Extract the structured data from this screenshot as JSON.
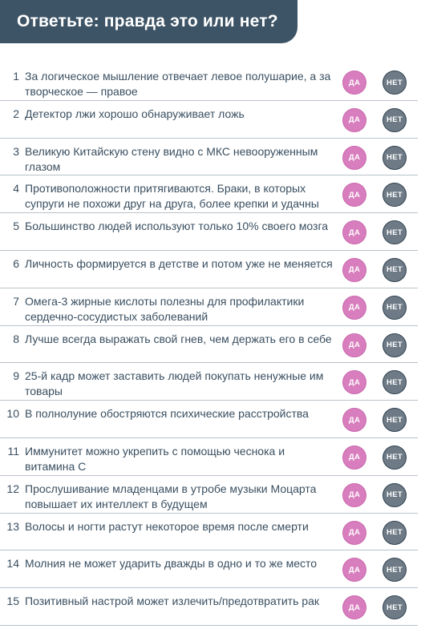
{
  "title": "Ответьте: правда это или нет?",
  "yes_label": "ДА",
  "no_label": "НЕТ",
  "colors": {
    "banner": "#3d5466",
    "yes_button": "#d87dbd",
    "no_button": "#6e7b86",
    "text": "#3a4f60"
  },
  "items": [
    {
      "num": "1",
      "text": "За логическое мышление отвечает левое полушарие, а за творческое — правое"
    },
    {
      "num": "2",
      "text": "Детектор лжи хорошо обнаруживает ложь"
    },
    {
      "num": "3",
      "text": "Великую Китайскую стену видно с МКС невооруженным глазом"
    },
    {
      "num": "4",
      "text": "Противоположности притягиваются. Браки, в которых супруги не похожи друг на друга, более крепки и удачны"
    },
    {
      "num": "5",
      "text": "Большинство людей используют только 10% своего мозга"
    },
    {
      "num": "6",
      "text": "Личность формируется в детстве и потом уже не меняется"
    },
    {
      "num": "7",
      "text": "Омега-3 жирные кислоты полезны для профилактики сердечно-сосудистых заболеваний"
    },
    {
      "num": "8",
      "text": "Лучше всегда выражать свой гнев, чем держать его в себе"
    },
    {
      "num": "9",
      "text": "25-й кадр может заставить людей покупать ненужные им товары"
    },
    {
      "num": "10",
      "text": "В полнолуние обостряются психические расстройства"
    },
    {
      "num": "11",
      "text": "Иммунитет можно укрепить с помощью чеснока и витамина С"
    },
    {
      "num": "12",
      "text": "Прослушивание младенцами в утробе музыки Моцарта повышает их интеллект в будущем"
    },
    {
      "num": "13",
      "text": "Волосы и ногти растут некоторое время после смерти"
    },
    {
      "num": "14",
      "text": "Молния не может ударить дважды в одно и то же место"
    },
    {
      "num": "15",
      "text": "Позитивный настрой может излечить/предотвратить рак"
    }
  ]
}
